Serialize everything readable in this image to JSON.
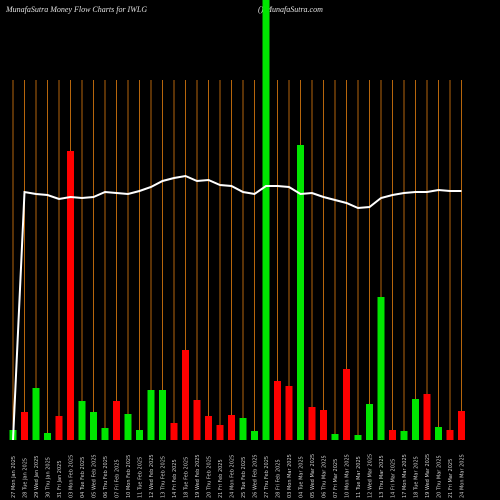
{
  "chart_data": {
    "type": "bar",
    "title": "MunafaSutra  Money Flow  Charts for IWLG",
    "subtitle": "() MunafaSutra.com",
    "categories": [
      "27 Mon Jan 2025",
      "28 Tue Jan 2025",
      "29 Wed Jan 2025",
      "30 Thu Jan 2025",
      "31 Fri Jan 2025",
      "03 Mon Feb 2025",
      "04 Tue Feb 2025",
      "05 Wed Feb 2025",
      "06 Thu Feb 2025",
      "07 Fri Feb 2025",
      "10 Mon Feb 2025",
      "11 Tue Feb 2025",
      "12 Wed Feb 2025",
      "13 Thu Feb 2025",
      "14 Fri Feb 2025",
      "18 Tue Feb 2025",
      "19 Wed Feb 2025",
      "20 Thu Feb 2025",
      "21 Fri Feb 2025",
      "24 Mon Feb 2025",
      "25 Tue Feb 2025",
      "26 Wed Feb 2025",
      "27 Thu Feb 2025",
      "28 Fri Feb 2025",
      "03 Mon Mar 2025",
      "04 Tue Mar 2025",
      "05 Wed Mar 2025",
      "06 Thu Mar 2025",
      "07 Fri Mar 2025",
      "10 Mon Mar 2025",
      "11 Tue Mar 2025",
      "12 Wed Mar 2025",
      "13 Thu Mar 2025",
      "14 Fri Mar 2025",
      "17 Mon Mar 2025",
      "18 Tue Mar 2025",
      "19 Wed Mar 2025",
      "20 Thu Mar 2025",
      "21 Fri Mar 2025",
      "24 Mon Mar 2025"
    ],
    "series": [
      {
        "values": [
          10,
          28,
          52,
          7,
          24,
          289,
          39,
          28,
          12,
          39,
          26,
          10,
          50,
          50,
          17,
          90,
          40,
          24,
          15,
          25,
          22,
          9,
          440,
          59,
          54,
          295,
          33,
          30,
          6,
          71,
          5,
          36,
          143,
          10,
          9,
          41,
          46,
          13,
          10,
          29
        ],
        "colors": [
          "#00e600",
          "#ff0000",
          "#00e600",
          "#00e600",
          "#ff0000",
          "#ff0000",
          "#00e600",
          "#00e600",
          "#00e600",
          "#ff0000",
          "#00e600",
          "#00e600",
          "#00e600",
          "#00e600",
          "#ff0000",
          "#ff0000",
          "#ff0000",
          "#ff0000",
          "#ff0000",
          "#ff0000",
          "#00e600",
          "#00e600",
          "#00e600",
          "#ff0000",
          "#ff0000",
          "#00e600",
          "#ff0000",
          "#ff0000",
          "#00e600",
          "#ff0000",
          "#00e600",
          "#00e600",
          "#00e600",
          "#ff0000",
          "#00e600",
          "#00e600",
          "#ff0000",
          "#00e600",
          "#ff0000",
          "#ff0000"
        ]
      },
      {
        "type": "line",
        "color": "#ffffff",
        "values": [
          0,
          248,
          246,
          245,
          241,
          243,
          242,
          243,
          248,
          247,
          246,
          249,
          253,
          259,
          262,
          264,
          259,
          260,
          255,
          254,
          248,
          246,
          254,
          254,
          253,
          246,
          247,
          243,
          240,
          237,
          232,
          233,
          242,
          245,
          247,
          248,
          248,
          250,
          249,
          249
        ]
      }
    ],
    "ylim": [
      0,
      440
    ],
    "gridline_color": "#b5650c"
  }
}
